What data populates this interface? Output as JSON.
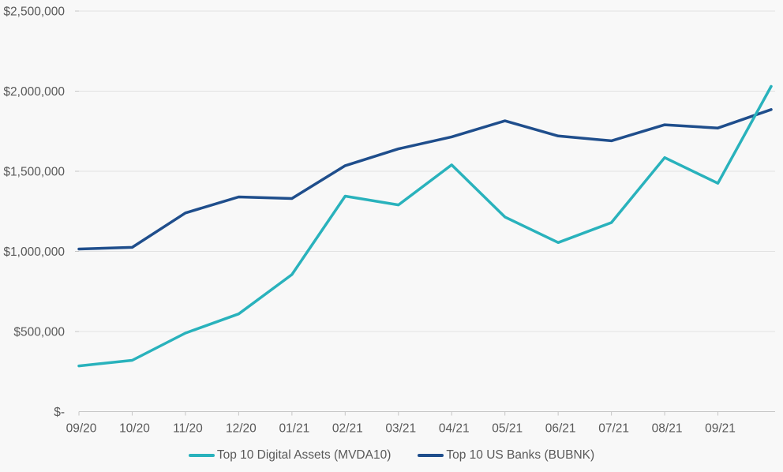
{
  "chart_data": {
    "type": "line",
    "title": "",
    "xlabel": "",
    "ylabel": "",
    "categories": [
      "09/20",
      "10/20",
      "11/20",
      "12/20",
      "01/21",
      "02/21",
      "03/21",
      "04/21",
      "05/21",
      "06/21",
      "07/21",
      "08/21",
      "09/21"
    ],
    "points_per_series": 14,
    "series": [
      {
        "name": "Top 10 Digital Assets (MVDA10)",
        "color": "#29b2bc",
        "values": [
          285000,
          320000,
          490000,
          610000,
          855000,
          1345000,
          1290000,
          1540000,
          1215000,
          1055000,
          1180000,
          1585000,
          1425000,
          2030000
        ]
      },
      {
        "name": "Top 10 US Banks (BUBNK)",
        "color": "#1f4e8c",
        "values": [
          1015000,
          1025000,
          1240000,
          1340000,
          1330000,
          1535000,
          1640000,
          1715000,
          1815000,
          1720000,
          1690000,
          1790000,
          1770000,
          1885000
        ]
      }
    ],
    "ylim": [
      0,
      2500000
    ],
    "y_tick_interval": 500000,
    "y_tick_labels": [
      "$-",
      "$500,000",
      "$1,000,000",
      "$1,500,000",
      "$2,000,000",
      "$2,500,000"
    ],
    "grid": true,
    "legend_position": "bottom"
  },
  "style": {
    "background": "#f8f8f8",
    "gridline_color": "#e2e2e2",
    "axis_color": "#c6c6c6",
    "text_color": "#595959"
  }
}
